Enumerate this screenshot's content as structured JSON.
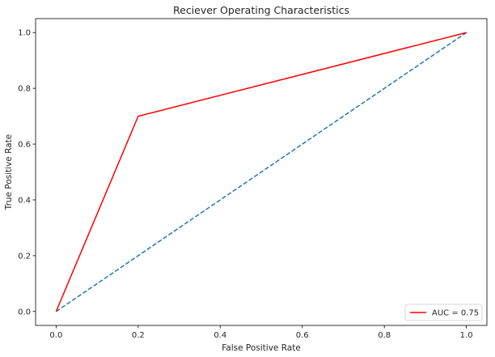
{
  "chart_data": {
    "type": "line",
    "title": "Reciever Operating Characteristics",
    "xlabel": "False Positive Rate",
    "ylabel": "True Positive Rate",
    "xlim": [
      -0.05,
      1.05
    ],
    "ylim": [
      -0.05,
      1.05
    ],
    "xticks": [
      0.0,
      0.2,
      0.4,
      0.6,
      0.8,
      1.0
    ],
    "yticks": [
      0.0,
      0.2,
      0.4,
      0.6,
      0.8,
      1.0
    ],
    "xtick_labels": [
      "0.0",
      "0.2",
      "0.4",
      "0.6",
      "0.8",
      "1.0"
    ],
    "ytick_labels": [
      "0.0",
      "0.2",
      "0.4",
      "0.6",
      "0.8",
      "1.0"
    ],
    "grid": false,
    "legend_position": "lower-right",
    "series": [
      {
        "name": "AUC = 0.75",
        "color": "#ff0000",
        "style": "solid",
        "x": [
          0.0,
          0.2,
          1.0
        ],
        "y": [
          0.0,
          0.7,
          1.0
        ]
      },
      {
        "color": "#1f77b4",
        "style": "dashed",
        "x": [
          0.0,
          1.0
        ],
        "y": [
          0.0,
          1.0
        ]
      }
    ]
  }
}
